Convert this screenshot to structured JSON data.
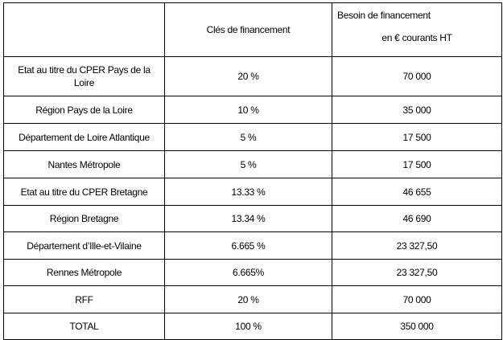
{
  "table": {
    "headers": {
      "empty": "",
      "keys": "Clés de financement",
      "need_line1": "Besoin de financement",
      "need_line2": "en € courants HT"
    },
    "rows": [
      {
        "label": "Etat au titre du CPER Pays de la Loire",
        "key": "20 %",
        "need": "70 000"
      },
      {
        "label": "Région Pays de la Loire",
        "key": "10 %",
        "need": "35 000"
      },
      {
        "label": "Département de Loire Atlantique",
        "key": "5 %",
        "need": "17 500"
      },
      {
        "label": "Nantes Métropole",
        "key": "5 %",
        "need": "17 500"
      },
      {
        "label": "Etat au titre du CPER Bretagne",
        "key": "13.33 %",
        "need": "46 655"
      },
      {
        "label": "Région Bretagne",
        "key": "13.34 %",
        "need": "46 690"
      },
      {
        "label": "Département d’Ille-et-Vilaine",
        "key": "6.665 %",
        "need": "23 327,50"
      },
      {
        "label": "Rennes Métropole",
        "key": "6.665%",
        "need": "23 327,50"
      },
      {
        "label": "RFF",
        "key": "20 %",
        "need": "70 000"
      },
      {
        "label": "TOTAL",
        "key": "100 %",
        "need": "350 000"
      }
    ]
  }
}
